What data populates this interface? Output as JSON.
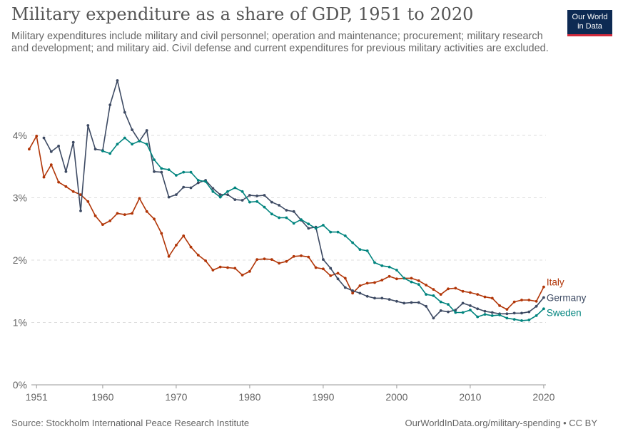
{
  "header": {
    "title": "Military expenditure as a share of GDP, 1951 to 2020",
    "subtitle": "Military expenditures include military and civil personnel; operation and maintenance; procurement; military research and development; and military aid. Civil defense and current expenditures for previous military activities are excluded."
  },
  "logo": {
    "line1": "Our World",
    "line2": "in Data",
    "bg": "#0d2a53",
    "accent": "#d2293b"
  },
  "footer": {
    "source": "Source: Stockholm International Peace Research Institute",
    "link": "OurWorldInData.org/military-spending • CC BY"
  },
  "chart_data": {
    "type": "line",
    "xlim": [
      1950,
      2021
    ],
    "ylim": [
      0,
      5
    ],
    "y_ticks": [
      {
        "value": 0,
        "label": "0%"
      },
      {
        "value": 1,
        "label": "1%"
      },
      {
        "value": 2,
        "label": "2%"
      },
      {
        "value": 3,
        "label": "3%"
      },
      {
        "value": 4,
        "label": "4%"
      }
    ],
    "x_ticks": [
      {
        "value": 1951,
        "label": "1951"
      },
      {
        "value": 1960,
        "label": "1960"
      },
      {
        "value": 1970,
        "label": "1970"
      },
      {
        "value": 1980,
        "label": "1980"
      },
      {
        "value": 1990,
        "label": "1990"
      },
      {
        "value": 2000,
        "label": "2000"
      },
      {
        "value": 2010,
        "label": "2010"
      },
      {
        "value": 2020,
        "label": "2020"
      }
    ],
    "grid": "horizontal-dashed",
    "series": [
      {
        "name": "Italy",
        "color": "#b13507",
        "x": [
          1950,
          1951,
          1952,
          1953,
          1954,
          1955,
          1956,
          1957,
          1958,
          1959,
          1960,
          1961,
          1962,
          1963,
          1964,
          1965,
          1966,
          1967,
          1968,
          1969,
          1970,
          1971,
          1972,
          1973,
          1974,
          1975,
          1976,
          1977,
          1978,
          1979,
          1980,
          1981,
          1982,
          1983,
          1984,
          1985,
          1986,
          1987,
          1988,
          1989,
          1990,
          1991,
          1992,
          1993,
          1994,
          1995,
          1996,
          1997,
          1998,
          1999,
          2000,
          2001,
          2002,
          2003,
          2004,
          2005,
          2006,
          2007,
          2008,
          2009,
          2010,
          2011,
          2012,
          2013,
          2014,
          2015,
          2016,
          2017,
          2018,
          2019,
          2020
        ],
        "values": [
          3.78,
          3.99,
          3.33,
          3.53,
          3.25,
          3.18,
          3.1,
          3.05,
          2.94,
          2.71,
          2.57,
          2.63,
          2.75,
          2.73,
          2.75,
          2.99,
          2.78,
          2.66,
          2.43,
          2.06,
          2.24,
          2.39,
          2.21,
          2.08,
          1.99,
          1.84,
          1.89,
          1.88,
          1.87,
          1.76,
          1.82,
          2.01,
          2.02,
          2.01,
          1.95,
          1.98,
          2.06,
          2.07,
          2.05,
          1.88,
          1.86,
          1.75,
          1.79,
          1.71,
          1.47,
          1.59,
          1.63,
          1.64,
          1.68,
          1.74,
          1.7,
          1.71,
          1.71,
          1.67,
          1.6,
          1.53,
          1.45,
          1.54,
          1.55,
          1.5,
          1.48,
          1.45,
          1.41,
          1.39,
          1.27,
          1.21,
          1.33,
          1.36,
          1.36,
          1.34,
          1.57
        ]
      },
      {
        "name": "Germany",
        "color": "#3d4a63",
        "x": [
          1952,
          1953,
          1954,
          1955,
          1956,
          1957,
          1958,
          1959,
          1960,
          1961,
          1962,
          1963,
          1964,
          1965,
          1966,
          1967,
          1968,
          1969,
          1970,
          1971,
          1972,
          1973,
          1974,
          1975,
          1976,
          1977,
          1978,
          1979,
          1980,
          1981,
          1982,
          1983,
          1984,
          1985,
          1986,
          1987,
          1988,
          1989,
          1990,
          1991,
          1992,
          1993,
          1994,
          1995,
          1996,
          1997,
          1998,
          1999,
          2000,
          2001,
          2002,
          2003,
          2004,
          2005,
          2006,
          2007,
          2008,
          2009,
          2010,
          2011,
          2012,
          2013,
          2014,
          2015,
          2016,
          2017,
          2018,
          2019,
          2020
        ],
        "values": [
          3.96,
          3.74,
          3.83,
          3.42,
          3.89,
          2.79,
          4.16,
          3.78,
          3.76,
          4.49,
          4.88,
          4.37,
          4.09,
          3.91,
          4.08,
          3.42,
          3.41,
          3.01,
          3.05,
          3.17,
          3.16,
          3.24,
          3.28,
          3.15,
          3.05,
          3.05,
          2.97,
          2.96,
          3.04,
          3.03,
          3.04,
          2.93,
          2.88,
          2.8,
          2.78,
          2.64,
          2.51,
          2.53,
          2.01,
          1.87,
          1.7,
          1.56,
          1.51,
          1.47,
          1.42,
          1.39,
          1.39,
          1.37,
          1.34,
          1.31,
          1.32,
          1.32,
          1.26,
          1.07,
          1.19,
          1.17,
          1.2,
          1.31,
          1.27,
          1.22,
          1.18,
          1.16,
          1.14,
          1.14,
          1.15,
          1.15,
          1.17,
          1.26,
          1.4
        ]
      },
      {
        "name": "Sweden",
        "color": "#00847e",
        "x": [
          1960,
          1961,
          1962,
          1963,
          1964,
          1965,
          1966,
          1967,
          1968,
          1969,
          1970,
          1971,
          1972,
          1973,
          1974,
          1975,
          1976,
          1977,
          1978,
          1979,
          1980,
          1981,
          1982,
          1983,
          1984,
          1985,
          1986,
          1987,
          1988,
          1989,
          1990,
          1991,
          1992,
          1993,
          1994,
          1995,
          1996,
          1997,
          1998,
          1999,
          2000,
          2001,
          2002,
          2003,
          2004,
          2005,
          2006,
          2007,
          2008,
          2009,
          2010,
          2011,
          2012,
          2013,
          2014,
          2015,
          2016,
          2017,
          2018,
          2019,
          2020
        ],
        "values": [
          3.75,
          3.71,
          3.86,
          3.96,
          3.86,
          3.91,
          3.86,
          3.61,
          3.47,
          3.45,
          3.36,
          3.41,
          3.41,
          3.28,
          3.26,
          3.1,
          3.01,
          3.1,
          3.16,
          3.1,
          2.93,
          2.94,
          2.85,
          2.74,
          2.68,
          2.68,
          2.59,
          2.65,
          2.58,
          2.51,
          2.56,
          2.45,
          2.45,
          2.39,
          2.28,
          2.17,
          2.15,
          1.96,
          1.91,
          1.89,
          1.84,
          1.71,
          1.65,
          1.61,
          1.45,
          1.43,
          1.33,
          1.29,
          1.16,
          1.16,
          1.2,
          1.09,
          1.13,
          1.11,
          1.12,
          1.07,
          1.05,
          1.03,
          1.04,
          1.11,
          1.22
        ]
      }
    ]
  }
}
